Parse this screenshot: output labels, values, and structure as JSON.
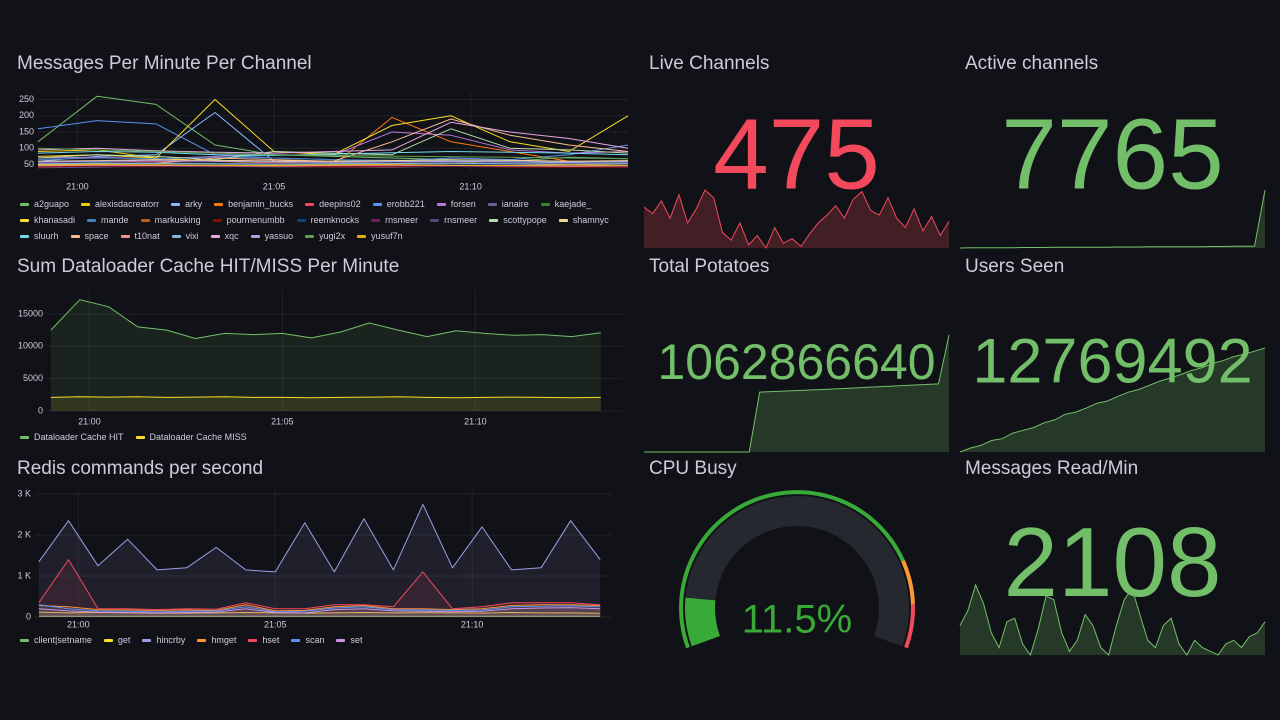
{
  "chart_data": [
    {
      "type": "timeseries",
      "title": "Messages Per Minute Per Channel",
      "fill": false,
      "x": [
        1259,
        1260.5,
        1262,
        1263.5,
        1265,
        1266.5,
        1268,
        1269.5,
        1271,
        1272.5,
        1274
      ],
      "xlim": [
        1259,
        1274
      ],
      "xticks": [
        {
          "value": 1260,
          "label": "21:00"
        },
        {
          "value": 1265,
          "label": "21:05"
        },
        {
          "value": 1270,
          "label": "21:10"
        }
      ],
      "ylim": [
        30,
        270
      ],
      "yticks": [
        50,
        100,
        150,
        200,
        250
      ],
      "series": [
        {
          "name": "a2guapo",
          "color": "#73bf69",
          "values": [
            120,
            260,
            235,
            110,
            80,
            75,
            70,
            65,
            60,
            72,
            68
          ]
        },
        {
          "name": "alexisdacreatorr",
          "color": "#f2cc0c",
          "values": [
            90,
            95,
            70,
            60,
            55,
            60,
            58,
            55,
            62,
            60,
            58
          ]
        },
        {
          "name": "arky",
          "color": "#8ab8ff",
          "values": [
            60,
            75,
            80,
            210,
            60,
            55,
            52,
            60,
            58,
            55,
            60
          ]
        },
        {
          "name": "benjamin_bucks",
          "color": "#ff780a",
          "values": [
            45,
            50,
            48,
            52,
            50,
            47,
            195,
            120,
            90,
            60,
            55
          ]
        },
        {
          "name": "deepins02",
          "color": "#f2495c",
          "values": [
            55,
            60,
            58,
            62,
            55,
            50,
            48,
            52,
            50,
            48,
            50
          ]
        },
        {
          "name": "erobb221",
          "color": "#5794f2",
          "values": [
            160,
            185,
            175,
            80,
            70,
            65,
            60,
            70,
            65,
            80,
            110
          ]
        },
        {
          "name": "forsen",
          "color": "#b877d9",
          "values": [
            70,
            72,
            68,
            75,
            80,
            78,
            150,
            140,
            95,
            85,
            90
          ]
        },
        {
          "name": "ianaire",
          "color": "#705da0",
          "values": [
            40,
            42,
            45,
            44,
            43,
            42,
            41,
            45,
            44,
            43,
            42
          ]
        },
        {
          "name": "kaejade_",
          "color": "#37872d",
          "values": [
            50,
            55,
            52,
            50,
            48,
            50,
            52,
            55,
            53,
            50,
            52
          ]
        },
        {
          "name": "khanasadi",
          "color": "#fade2a",
          "values": [
            75,
            80,
            70,
            250,
            90,
            80,
            170,
            200,
            120,
            90,
            200
          ]
        },
        {
          "name": "mande",
          "color": "#447ebc",
          "values": [
            65,
            70,
            68,
            72,
            70,
            65,
            63,
            62,
            60,
            58,
            56
          ]
        },
        {
          "name": "markusking",
          "color": "#c15c17",
          "values": [
            45,
            48,
            46,
            44,
            45,
            43,
            44,
            46,
            45,
            44,
            43
          ]
        },
        {
          "name": "pourmenumbb",
          "color": "#890f02",
          "values": [
            42,
            44,
            43,
            45,
            44,
            42,
            43,
            44,
            42,
            41,
            42
          ]
        },
        {
          "name": "reemknocks",
          "color": "#0a437c",
          "values": [
            48,
            50,
            52,
            49,
            47,
            48,
            50,
            51,
            49,
            48,
            50
          ]
        },
        {
          "name": "rnsmeer",
          "color": "#6d1f62",
          "values": [
            44,
            46,
            45,
            43,
            44,
            45,
            46,
            44,
            43,
            45,
            44
          ]
        },
        {
          "name": "rnsmeer",
          "color": "#584477",
          "values": [
            55,
            58,
            56,
            54,
            53,
            55,
            57,
            56,
            54,
            53,
            55
          ]
        },
        {
          "name": "scottypope",
          "color": "#b7dbab",
          "values": [
            70,
            80,
            75,
            65,
            90,
            85,
            80,
            160,
            100,
            95,
            85
          ]
        },
        {
          "name": "shamnyc",
          "color": "#f4d598",
          "values": [
            60,
            62,
            65,
            63,
            61,
            60,
            62,
            64,
            63,
            60,
            62
          ]
        },
        {
          "name": "sluurh",
          "color": "#70dbed",
          "values": [
            85,
            90,
            88,
            80,
            78,
            82,
            86,
            90,
            88,
            85,
            80
          ]
        },
        {
          "name": "space",
          "color": "#f9ba8f",
          "values": [
            50,
            52,
            54,
            70,
            65,
            60,
            120,
            190,
            140,
            110,
            90
          ]
        },
        {
          "name": "t10nat",
          "color": "#f29191",
          "values": [
            46,
            48,
            47,
            46,
            45,
            47,
            48,
            47,
            46,
            45,
            46
          ]
        },
        {
          "name": "vixi",
          "color": "#82b5d8",
          "values": [
            52,
            54,
            53,
            52,
            51,
            52,
            53,
            54,
            52,
            51,
            53
          ]
        },
        {
          "name": "xqc",
          "color": "#e5a8e2",
          "values": [
            95,
            100,
            92,
            88,
            85,
            90,
            95,
            180,
            150,
            130,
            100
          ]
        },
        {
          "name": "yassuo",
          "color": "#aea2e0",
          "values": [
            58,
            60,
            62,
            60,
            58,
            57,
            59,
            60,
            58,
            57,
            59
          ]
        },
        {
          "name": "yugi2x",
          "color": "#629e51",
          "values": [
            100,
            95,
            90,
            85,
            80,
            78,
            76,
            74,
            72,
            70,
            68
          ]
        },
        {
          "name": "yusuf7n",
          "color": "#e5ac0e",
          "values": [
            48,
            50,
            49,
            48,
            47,
            49,
            50,
            48,
            47,
            49,
            48
          ]
        }
      ]
    },
    {
      "type": "timeseries",
      "title": "Sum Dataloader Cache HIT/MISS Per Minute",
      "fill": true,
      "x": [
        1259,
        1259.75,
        1260.5,
        1261.25,
        1262,
        1262.75,
        1263.5,
        1264.25,
        1265,
        1265.75,
        1266.5,
        1267.25,
        1268,
        1268.75,
        1269.5,
        1270.25,
        1271,
        1271.75,
        1272.5,
        1273.25
      ],
      "xlim": [
        1258.9,
        1273.8
      ],
      "xticks": [
        {
          "value": 1260,
          "label": "21:00"
        },
        {
          "value": 1265,
          "label": "21:05"
        },
        {
          "value": 1270,
          "label": "21:10"
        }
      ],
      "ylim": [
        0,
        18700
      ],
      "yticks": [
        0,
        5000,
        10000,
        15000
      ],
      "series": [
        {
          "name": "Dataloader Cache HIT",
          "color": "#73bf69",
          "values": [
            12500,
            17200,
            16100,
            13000,
            12500,
            11200,
            12000,
            11800,
            12000,
            11300,
            12200,
            13600,
            12500,
            11500,
            12400,
            12000,
            11700,
            11800,
            11500,
            12100
          ]
        },
        {
          "name": "Dataloader Cache MISS",
          "color": "#fade2a",
          "values": [
            2100,
            2200,
            2150,
            2200,
            2100,
            2150,
            2200,
            2100,
            2100,
            2050,
            2100,
            2150,
            2200,
            2100,
            2050,
            2100,
            2150,
            2100,
            2050,
            2100
          ]
        }
      ]
    },
    {
      "type": "timeseries",
      "title": "Redis commands per second",
      "fill": true,
      "x": [
        1259,
        1259.75,
        1260.5,
        1261.25,
        1262,
        1262.75,
        1263.5,
        1264.25,
        1265,
        1265.75,
        1266.5,
        1267.25,
        1268,
        1268.75,
        1269.5,
        1270.25,
        1271,
        1271.75,
        1272.5,
        1273.25
      ],
      "xlim": [
        1258.9,
        1273.55
      ],
      "xticks": [
        {
          "value": 1260,
          "label": "21:00"
        },
        {
          "value": 1265,
          "label": "21:05"
        },
        {
          "value": 1270,
          "label": "21:10"
        }
      ],
      "ylim": [
        0,
        3100
      ],
      "yticks": [
        0,
        {
          "value": 1000,
          "label": "1 K"
        },
        {
          "value": 2000,
          "label": "2 K"
        },
        {
          "value": 3000,
          "label": "3 K"
        }
      ],
      "series": [
        {
          "name": "client|setname",
          "color": "#73bf69",
          "values": [
            20,
            20,
            20,
            20,
            20,
            20,
            20,
            20,
            20,
            20,
            20,
            20,
            20,
            20,
            20,
            20,
            20,
            20,
            20,
            20
          ]
        },
        {
          "name": "get",
          "color": "#fade2a",
          "values": [
            120,
            100,
            110,
            100,
            90,
            95,
            100,
            110,
            100,
            95,
            100,
            110,
            100,
            105,
            100,
            95,
            110,
            100,
            100,
            90
          ]
        },
        {
          "name": "hincrby",
          "color": "#9d9de8",
          "values": [
            1350,
            2350,
            1250,
            1900,
            1150,
            1200,
            1700,
            1150,
            1100,
            2300,
            1100,
            2400,
            1150,
            2750,
            1200,
            2200,
            1150,
            1200,
            2350,
            1400
          ]
        },
        {
          "name": "hmget",
          "color": "#ff9830",
          "values": [
            280,
            250,
            180,
            170,
            160,
            170,
            160,
            300,
            150,
            160,
            250,
            280,
            200,
            200,
            180,
            200,
            280,
            300,
            300,
            280
          ]
        },
        {
          "name": "hset",
          "color": "#f2495c",
          "values": [
            350,
            1400,
            200,
            200,
            180,
            200,
            190,
            350,
            200,
            200,
            300,
            300,
            250,
            1100,
            200,
            250,
            350,
            350,
            350,
            300
          ]
        },
        {
          "name": "scan",
          "color": "#5794f2",
          "values": [
            300,
            200,
            150,
            140,
            130,
            140,
            150,
            250,
            130,
            140,
            220,
            250,
            180,
            170,
            160,
            170,
            250,
            260,
            270,
            250
          ]
        },
        {
          "name": "set",
          "color": "#ca95e5",
          "values": [
            200,
            150,
            120,
            110,
            100,
            110,
            120,
            200,
            110,
            100,
            180,
            200,
            150,
            140,
            130,
            140,
            200,
            220,
            230,
            200
          ]
        }
      ]
    },
    {
      "type": "stat",
      "title": "Live Channels",
      "value": 475,
      "color": "#f2495c",
      "sparkline": [
        462,
        458,
        466,
        455,
        470,
        452,
        461,
        473,
        468,
        446,
        441,
        452,
        438,
        444,
        436,
        449,
        439,
        442,
        437,
        445,
        452,
        457,
        463,
        455,
        467,
        472,
        460,
        457,
        468,
        455,
        449,
        461,
        447,
        456,
        444,
        453
      ]
    },
    {
      "type": "stat",
      "title": "Active channels",
      "value": 7765,
      "color": "#73bf69",
      "sparkline": [
        7420,
        7421,
        7421,
        7422,
        7422,
        7422,
        7423,
        7423,
        7423,
        7424,
        7424,
        7424,
        7425,
        7425,
        7425,
        7426,
        7426,
        7426,
        7427,
        7427,
        7427,
        7428,
        7428,
        7428,
        7429,
        7429,
        7430,
        7430,
        7430,
        7765
      ]
    },
    {
      "type": "stat",
      "title": "Total Potatoes",
      "value": 1062866640,
      "color": "#73bf69",
      "sparkline": [
        1061500000,
        1061500000,
        1061500000,
        1061500000,
        1061500000,
        1061500000,
        1061500000,
        1061500000,
        1061500000,
        1061500000,
        1061500000,
        1062200000,
        1062205000,
        1062210000,
        1062215000,
        1062220000,
        1062225000,
        1062230000,
        1062236000,
        1062242000,
        1062248000,
        1062254000,
        1062260000,
        1062266000,
        1062272000,
        1062278000,
        1062284000,
        1062290000,
        1062296000,
        1062866640
      ]
    },
    {
      "type": "stat",
      "title": "Users Seen",
      "value": 12769492,
      "color": "#73bf69",
      "sparkline": [
        12300000,
        12318000,
        12330000,
        12352000,
        12360000,
        12385000,
        12398000,
        12410000,
        12432000,
        12445000,
        12470000,
        12480000,
        12498000,
        12520000,
        12530000,
        12551000,
        12570000,
        12582000,
        12601000,
        12620000,
        12634000,
        12650000,
        12668000,
        12680000,
        12700000,
        12712000,
        12730000,
        12741000,
        12755000,
        12769492
      ]
    },
    {
      "type": "gauge",
      "title": "CPU Busy",
      "value": 11.5,
      "value_label": "11.5%",
      "min": 0,
      "max": 100,
      "thresholds": [
        {
          "value": 0,
          "color": "#37aa37"
        },
        {
          "value": 80,
          "color": "#ff9830"
        },
        {
          "value": 90,
          "color": "#f2495c"
        }
      ]
    },
    {
      "type": "stat",
      "title": "Messages Read/Min",
      "value": 2108,
      "color": "#73bf69",
      "sparkline": [
        1900,
        2100,
        2450,
        2200,
        1800,
        1600,
        1950,
        2000,
        1650,
        1500,
        1850,
        2300,
        2250,
        1800,
        1550,
        1700,
        2050,
        1900,
        1600,
        1500,
        1900,
        2250,
        2400,
        2050,
        1700,
        1600,
        1900,
        2000,
        1650,
        1500,
        1700,
        1600,
        1550,
        1500,
        1650,
        1700,
        1600,
        1750,
        1800,
        1950
      ]
    }
  ]
}
